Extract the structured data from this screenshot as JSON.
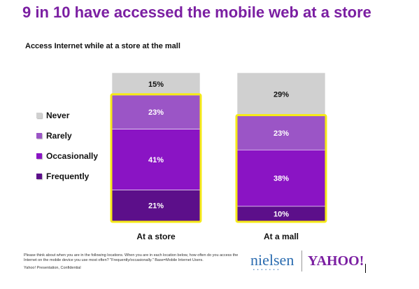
{
  "title": "9 in 10 have accessed the mobile web at a store",
  "subtitle": "Access Internet while at a store at the mall",
  "chart_data": {
    "type": "bar",
    "stacked": true,
    "categories": [
      "At a store",
      "At a mall"
    ],
    "series": [
      {
        "name": "Frequently",
        "values": [
          21,
          10
        ],
        "labels": [
          "21%",
          "10%"
        ],
        "color": "#5c0f8a"
      },
      {
        "name": "Occasionally",
        "values": [
          41,
          38
        ],
        "labels": [
          "41%",
          "38%"
        ],
        "color": "#8a14c4"
      },
      {
        "name": "Rarely",
        "values": [
          23,
          23
        ],
        "labels": [
          "23%",
          "23%"
        ],
        "color": "#9b55c6"
      },
      {
        "name": "Never",
        "values": [
          15,
          29
        ],
        "labels": [
          "15%",
          "29%"
        ],
        "color": "#d0d0d0"
      }
    ],
    "legend_order": [
      "Never",
      "Rarely",
      "Occasionally",
      "Frequently"
    ],
    "legend_position": "left",
    "highlight_color": "#f5ea18",
    "ylim": [
      0,
      100
    ],
    "grid": false
  },
  "footnote": "Please think about when you are in the following locations. When you are in each location below, how often do you access the Internet on the mobile device you use most often? \"Frequently/occasionally.\" Base=Mobile Internet Users.",
  "confidential": "Yahoo! Presentation, Confidential",
  "logos": {
    "nielsen": "nielsen",
    "yahoo": "YAHOO!"
  }
}
